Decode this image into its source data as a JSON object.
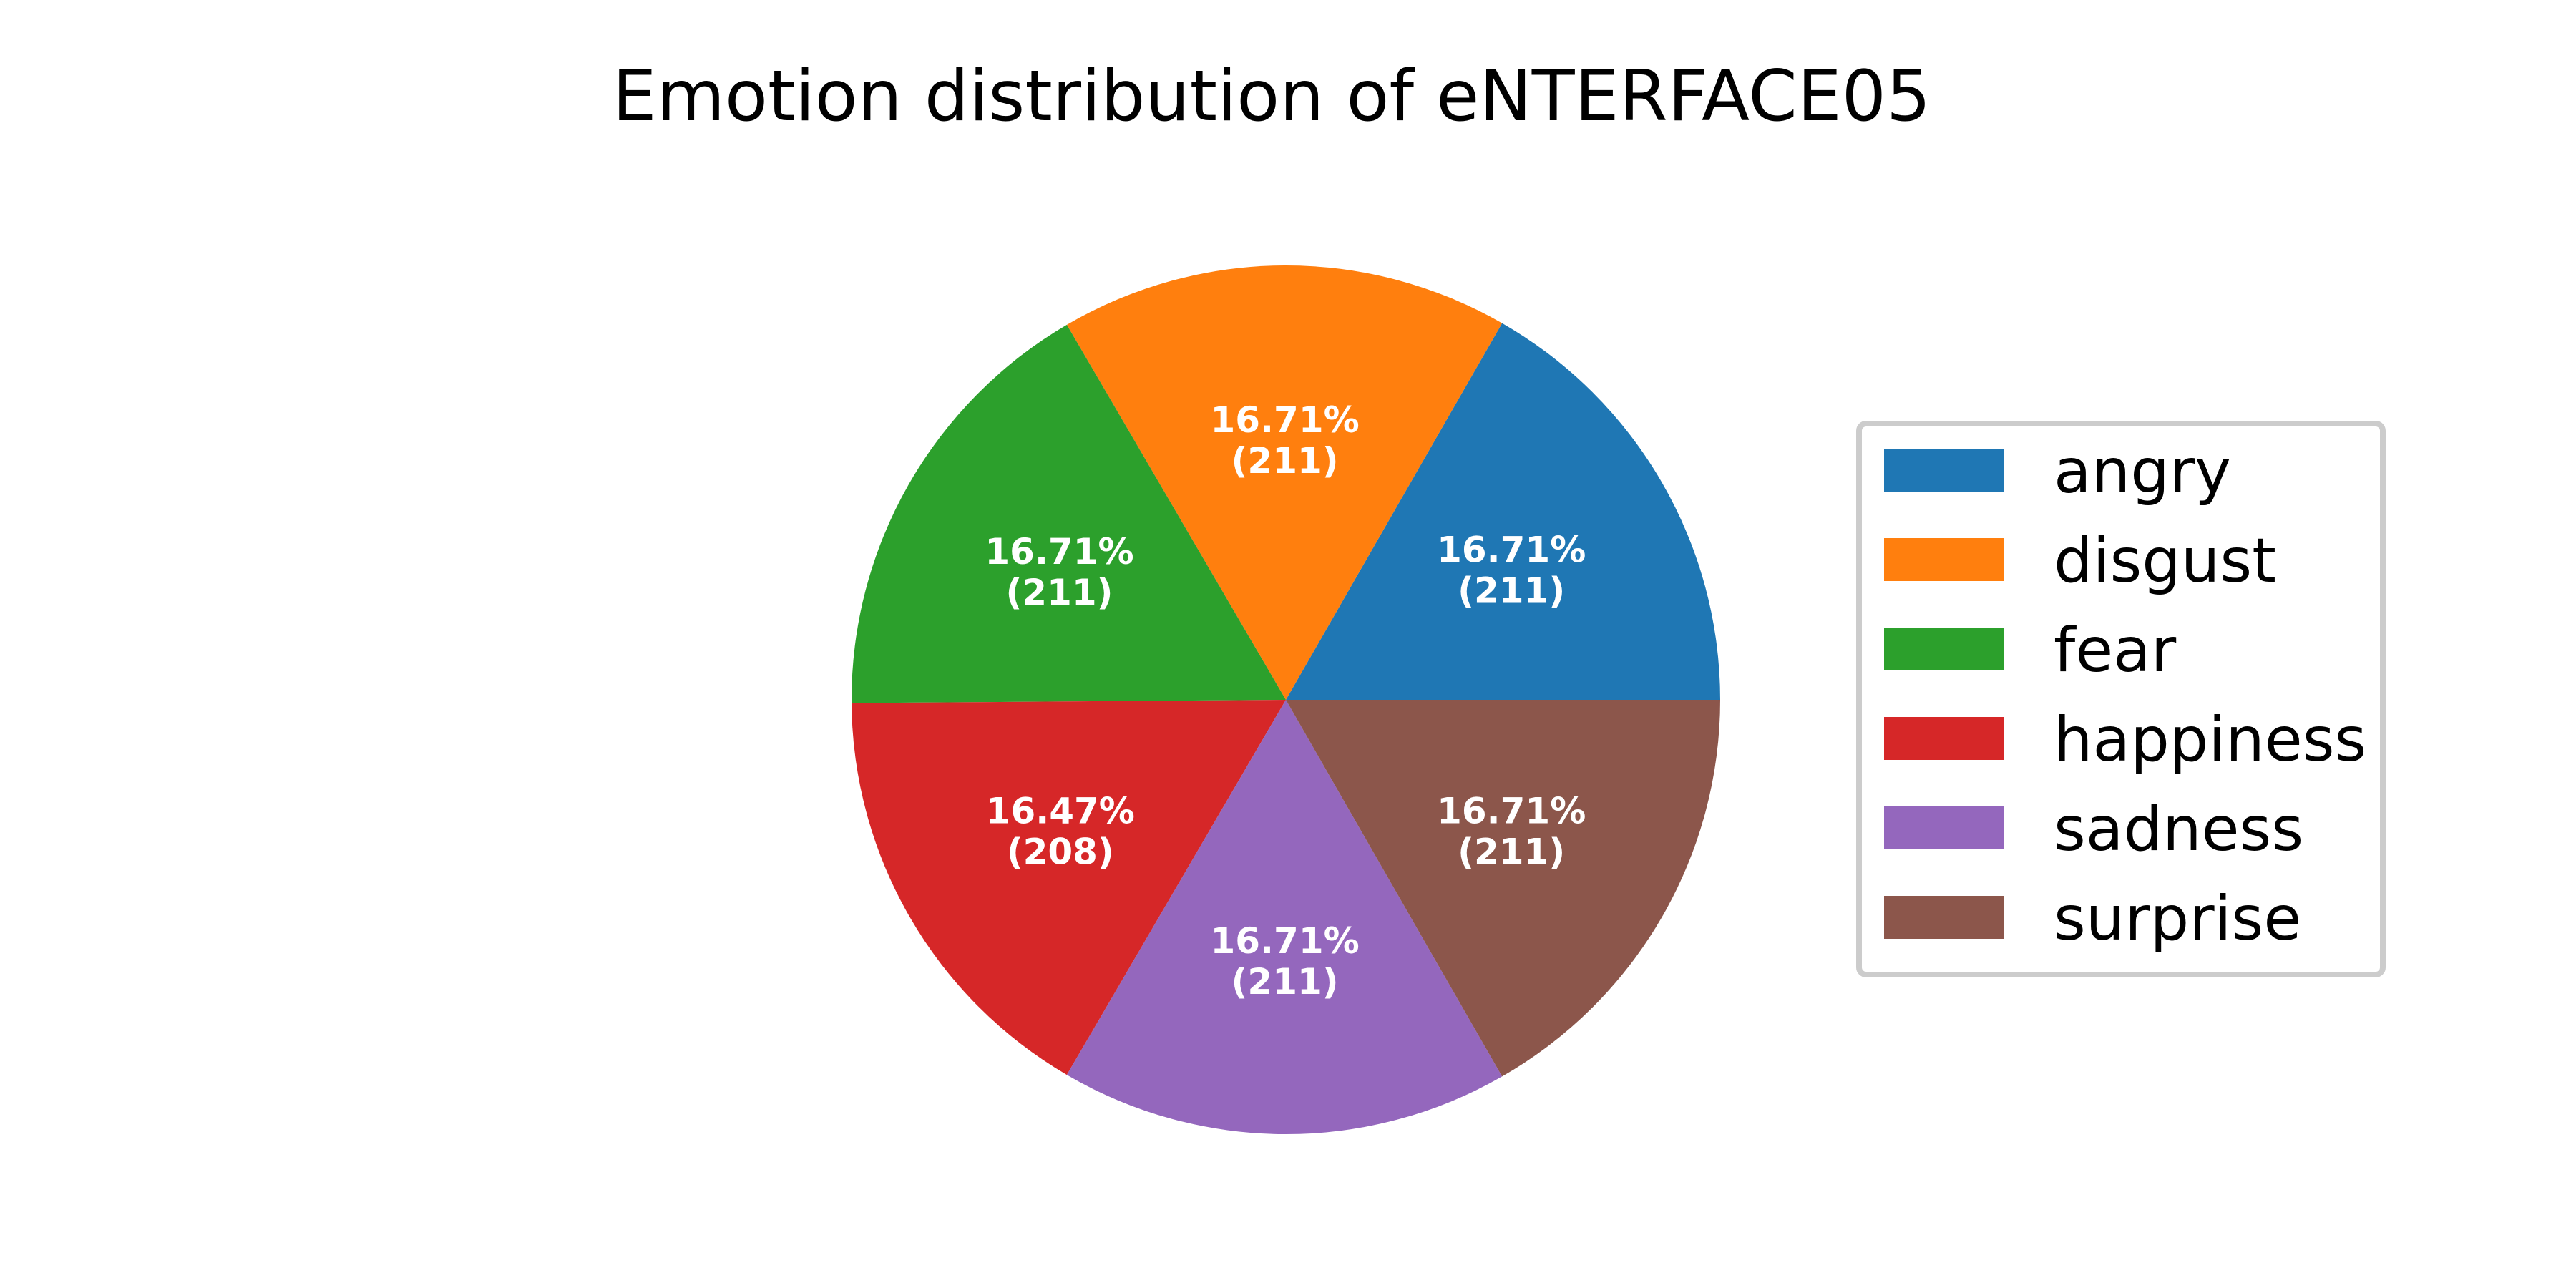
{
  "chart_data": {
    "type": "pie",
    "title": "Emotion distribution of eNTERFACE05",
    "slices": [
      {
        "label": "angry",
        "value": 211,
        "percent_label": "16.71%",
        "count_label": "(211)",
        "color": "#1f77b4"
      },
      {
        "label": "disgust",
        "value": 211,
        "percent_label": "16.71%",
        "count_label": "(211)",
        "color": "#ff7f0e"
      },
      {
        "label": "fear",
        "value": 211,
        "percent_label": "16.71%",
        "count_label": "(211)",
        "color": "#2ca02c"
      },
      {
        "label": "happiness",
        "value": 208,
        "percent_label": "16.47%",
        "count_label": "(208)",
        "color": "#d62728"
      },
      {
        "label": "sadness",
        "value": 211,
        "percent_label": "16.71%",
        "count_label": "(211)",
        "color": "#9467bd"
      },
      {
        "label": "surprise",
        "value": 211,
        "percent_label": "16.71%",
        "count_label": "(211)",
        "color": "#8c564b"
      }
    ],
    "start_angle_deg": 0,
    "direction": "counterclockwise",
    "legend": {
      "placement": "right",
      "entries": [
        "angry",
        "disgust",
        "fear",
        "happiness",
        "sadness",
        "surprise"
      ]
    }
  }
}
